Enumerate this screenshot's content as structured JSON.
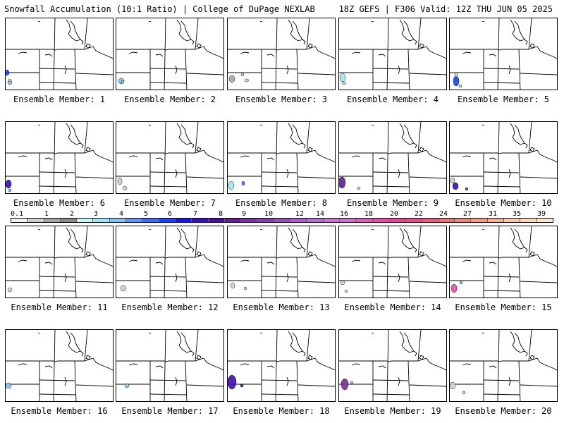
{
  "header": {
    "title_left": "Snowfall Accumulation (10:1 Ratio) | College of DuPage NEXLAB",
    "title_right": "18Z GEFS | F306 Valid: 12Z THU JUN 05 2025"
  },
  "member_label_prefix": "Ensemble Member: ",
  "members": [
    {
      "number": "1"
    },
    {
      "number": "2"
    },
    {
      "number": "3"
    },
    {
      "number": "4"
    },
    {
      "number": "5"
    },
    {
      "number": "6"
    },
    {
      "number": "7"
    },
    {
      "number": "8"
    },
    {
      "number": "9"
    },
    {
      "number": "10"
    },
    {
      "number": "11"
    },
    {
      "number": "12"
    },
    {
      "number": "13"
    },
    {
      "number": "14"
    },
    {
      "number": "15"
    },
    {
      "number": "16"
    },
    {
      "number": "17"
    },
    {
      "number": "18"
    },
    {
      "number": "19"
    },
    {
      "number": "20"
    }
  ],
  "colorbar": {
    "labels": [
      "0.1",
      "1",
      "2",
      "3",
      "4",
      "5",
      "6",
      "7",
      "8",
      "9",
      "10",
      "12",
      "14",
      "16",
      "18",
      "20",
      "22",
      "24",
      "27",
      "31",
      "35",
      "39"
    ],
    "colors": [
      "#f2f2f2",
      "#d0d0d0",
      "#a8a8a8",
      "#8a8a8a",
      "#c8f6fb",
      "#9fe6f6",
      "#7fc6f2",
      "#5b9cf0",
      "#3a70ee",
      "#1a44f0",
      "#1818d8",
      "#3a10b0",
      "#4a1090",
      "#60208c",
      "#78309a",
      "#8a40a8",
      "#9850b8",
      "#a860c8",
      "#b870d0",
      "#c878d0",
      "#d070c8",
      "#d860b8",
      "#e050a8",
      "#e04898",
      "#e05090",
      "#e06080",
      "#e07878",
      "#e88880",
      "#f0a088",
      "#f4b496",
      "#f8c8a8",
      "#fad8bc",
      "#fce6d0"
    ]
  }
}
